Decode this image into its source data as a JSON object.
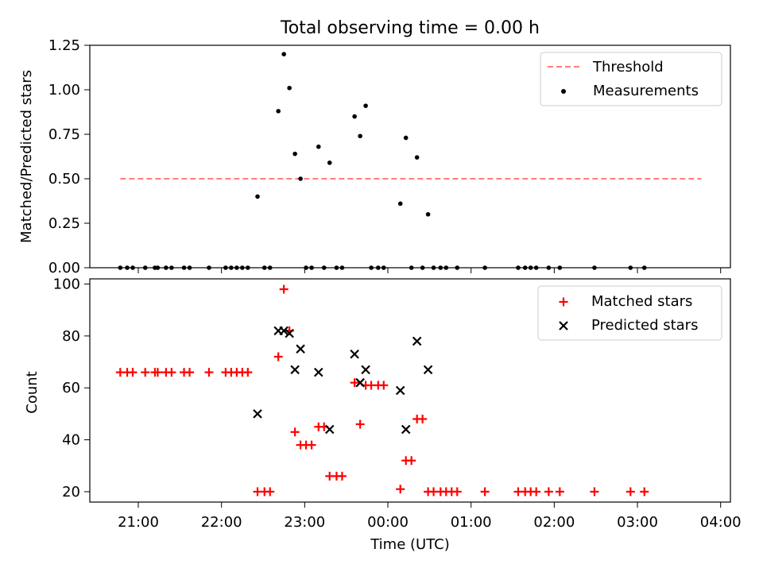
{
  "chart_data": [
    {
      "type": "scatter",
      "title": "Total observing time = 0.00 h",
      "xlabel": "",
      "ylabel": "Matched/Predicted stars",
      "ylim": [
        0,
        1.25
      ],
      "yticks": [
        "0.00",
        "0.25",
        "0.50",
        "0.75",
        "1.00",
        "1.25"
      ],
      "legend_position": "top-right",
      "threshold": {
        "name": "Threshold",
        "value": 0.5,
        "x_start": "20:47",
        "x_end": "03:46",
        "color": "#ff7f7f",
        "style": "dashed"
      },
      "series": [
        {
          "name": "Measurements",
          "color": "#000000",
          "marker": "dot",
          "points": [
            {
              "x": "20:47",
              "y": 0
            },
            {
              "x": "20:52",
              "y": 0
            },
            {
              "x": "20:56",
              "y": 0
            },
            {
              "x": "21:05",
              "y": 0
            },
            {
              "x": "21:12",
              "y": 0
            },
            {
              "x": "21:14",
              "y": 0
            },
            {
              "x": "21:20",
              "y": 0
            },
            {
              "x": "21:24",
              "y": 0
            },
            {
              "x": "21:33",
              "y": 0
            },
            {
              "x": "21:37",
              "y": 0
            },
            {
              "x": "21:51",
              "y": 0
            },
            {
              "x": "22:03",
              "y": 0
            },
            {
              "x": "22:07",
              "y": 0
            },
            {
              "x": "22:11",
              "y": 0
            },
            {
              "x": "22:15",
              "y": 0
            },
            {
              "x": "22:19",
              "y": 0
            },
            {
              "x": "22:26",
              "y": 0.4
            },
            {
              "x": "22:31",
              "y": 0
            },
            {
              "x": "22:35",
              "y": 0
            },
            {
              "x": "22:41",
              "y": 0.88
            },
            {
              "x": "22:45",
              "y": 1.2
            },
            {
              "x": "22:49",
              "y": 1.01
            },
            {
              "x": "22:53",
              "y": 0.64
            },
            {
              "x": "22:57",
              "y": 0.5
            },
            {
              "x": "23:01",
              "y": 0
            },
            {
              "x": "23:05",
              "y": 0
            },
            {
              "x": "23:10",
              "y": 0.68
            },
            {
              "x": "23:14",
              "y": 0
            },
            {
              "x": "23:18",
              "y": 0.59
            },
            {
              "x": "23:23",
              "y": 0
            },
            {
              "x": "23:27",
              "y": 0
            },
            {
              "x": "23:36",
              "y": 0.85
            },
            {
              "x": "23:40",
              "y": 0.74
            },
            {
              "x": "23:44",
              "y": 0.91
            },
            {
              "x": "23:48",
              "y": 0
            },
            {
              "x": "23:53",
              "y": 0
            },
            {
              "x": "23:57",
              "y": 0
            },
            {
              "x": "00:09",
              "y": 0.36
            },
            {
              "x": "00:13",
              "y": 0.73
            },
            {
              "x": "00:17",
              "y": 0
            },
            {
              "x": "00:21",
              "y": 0.62
            },
            {
              "x": "00:25",
              "y": 0
            },
            {
              "x": "00:29",
              "y": 0.3
            },
            {
              "x": "00:33",
              "y": 0
            },
            {
              "x": "00:38",
              "y": 0
            },
            {
              "x": "00:42",
              "y": 0
            },
            {
              "x": "00:50",
              "y": 0
            },
            {
              "x": "01:10",
              "y": 0
            },
            {
              "x": "01:34",
              "y": 0
            },
            {
              "x": "01:39",
              "y": 0
            },
            {
              "x": "01:43",
              "y": 0
            },
            {
              "x": "01:47",
              "y": 0
            },
            {
              "x": "01:56",
              "y": 0
            },
            {
              "x": "02:04",
              "y": 0
            },
            {
              "x": "02:29",
              "y": 0
            },
            {
              "x": "02:55",
              "y": 0
            },
            {
              "x": "03:05",
              "y": 0
            }
          ]
        }
      ]
    },
    {
      "type": "scatter",
      "xlabel": "Time (UTC)",
      "ylabel": "Count",
      "ylim": [
        16,
        102
      ],
      "yticks": [
        "20",
        "40",
        "60",
        "80",
        "100"
      ],
      "xticks": [
        "21:00",
        "22:00",
        "23:00",
        "00:00",
        "01:00",
        "02:00",
        "03:00",
        "04:00"
      ],
      "legend_position": "top-right",
      "series": [
        {
          "name": "Matched stars",
          "color": "#ff0000",
          "marker": "plus",
          "points": [
            {
              "x": "20:47",
              "y": 66
            },
            {
              "x": "20:52",
              "y": 66
            },
            {
              "x": "20:56",
              "y": 66
            },
            {
              "x": "21:05",
              "y": 66
            },
            {
              "x": "21:12",
              "y": 66
            },
            {
              "x": "21:14",
              "y": 66
            },
            {
              "x": "21:20",
              "y": 66
            },
            {
              "x": "21:24",
              "y": 66
            },
            {
              "x": "21:33",
              "y": 66
            },
            {
              "x": "21:37",
              "y": 66
            },
            {
              "x": "21:51",
              "y": 66
            },
            {
              "x": "22:03",
              "y": 66
            },
            {
              "x": "22:07",
              "y": 66
            },
            {
              "x": "22:11",
              "y": 66
            },
            {
              "x": "22:15",
              "y": 66
            },
            {
              "x": "22:19",
              "y": 66
            },
            {
              "x": "22:26",
              "y": 20
            },
            {
              "x": "22:31",
              "y": 20
            },
            {
              "x": "22:35",
              "y": 20
            },
            {
              "x": "22:41",
              "y": 72
            },
            {
              "x": "22:45",
              "y": 98
            },
            {
              "x": "22:49",
              "y": 82
            },
            {
              "x": "22:53",
              "y": 43
            },
            {
              "x": "22:57",
              "y": 38
            },
            {
              "x": "23:01",
              "y": 38
            },
            {
              "x": "23:05",
              "y": 38
            },
            {
              "x": "23:10",
              "y": 45
            },
            {
              "x": "23:14",
              "y": 45
            },
            {
              "x": "23:18",
              "y": 26
            },
            {
              "x": "23:23",
              "y": 26
            },
            {
              "x": "23:27",
              "y": 26
            },
            {
              "x": "23:36",
              "y": 62
            },
            {
              "x": "23:40",
              "y": 46
            },
            {
              "x": "23:44",
              "y": 61
            },
            {
              "x": "23:48",
              "y": 61
            },
            {
              "x": "23:53",
              "y": 61
            },
            {
              "x": "23:57",
              "y": 61
            },
            {
              "x": "00:09",
              "y": 21
            },
            {
              "x": "00:13",
              "y": 32
            },
            {
              "x": "00:17",
              "y": 32
            },
            {
              "x": "00:21",
              "y": 48
            },
            {
              "x": "00:25",
              "y": 48
            },
            {
              "x": "00:29",
              "y": 20
            },
            {
              "x": "00:33",
              "y": 20
            },
            {
              "x": "00:38",
              "y": 20
            },
            {
              "x": "00:42",
              "y": 20
            },
            {
              "x": "00:46",
              "y": 20
            },
            {
              "x": "00:50",
              "y": 20
            },
            {
              "x": "01:10",
              "y": 20
            },
            {
              "x": "01:34",
              "y": 20
            },
            {
              "x": "01:39",
              "y": 20
            },
            {
              "x": "01:43",
              "y": 20
            },
            {
              "x": "01:47",
              "y": 20
            },
            {
              "x": "01:56",
              "y": 20
            },
            {
              "x": "02:04",
              "y": 20
            },
            {
              "x": "02:29",
              "y": 20
            },
            {
              "x": "02:55",
              "y": 20
            },
            {
              "x": "03:05",
              "y": 20
            }
          ]
        },
        {
          "name": "Predicted stars",
          "color": "#000000",
          "marker": "x",
          "points": [
            {
              "x": "22:26",
              "y": 50
            },
            {
              "x": "22:41",
              "y": 82
            },
            {
              "x": "22:45",
              "y": 82
            },
            {
              "x": "22:49",
              "y": 81
            },
            {
              "x": "22:53",
              "y": 67
            },
            {
              "x": "22:57",
              "y": 75
            },
            {
              "x": "23:10",
              "y": 66
            },
            {
              "x": "23:18",
              "y": 44
            },
            {
              "x": "23:36",
              "y": 73
            },
            {
              "x": "23:40",
              "y": 62
            },
            {
              "x": "23:44",
              "y": 67
            },
            {
              "x": "00:09",
              "y": 59
            },
            {
              "x": "00:13",
              "y": 44
            },
            {
              "x": "00:21",
              "y": 78
            },
            {
              "x": "00:29",
              "y": 67
            }
          ]
        }
      ]
    }
  ]
}
